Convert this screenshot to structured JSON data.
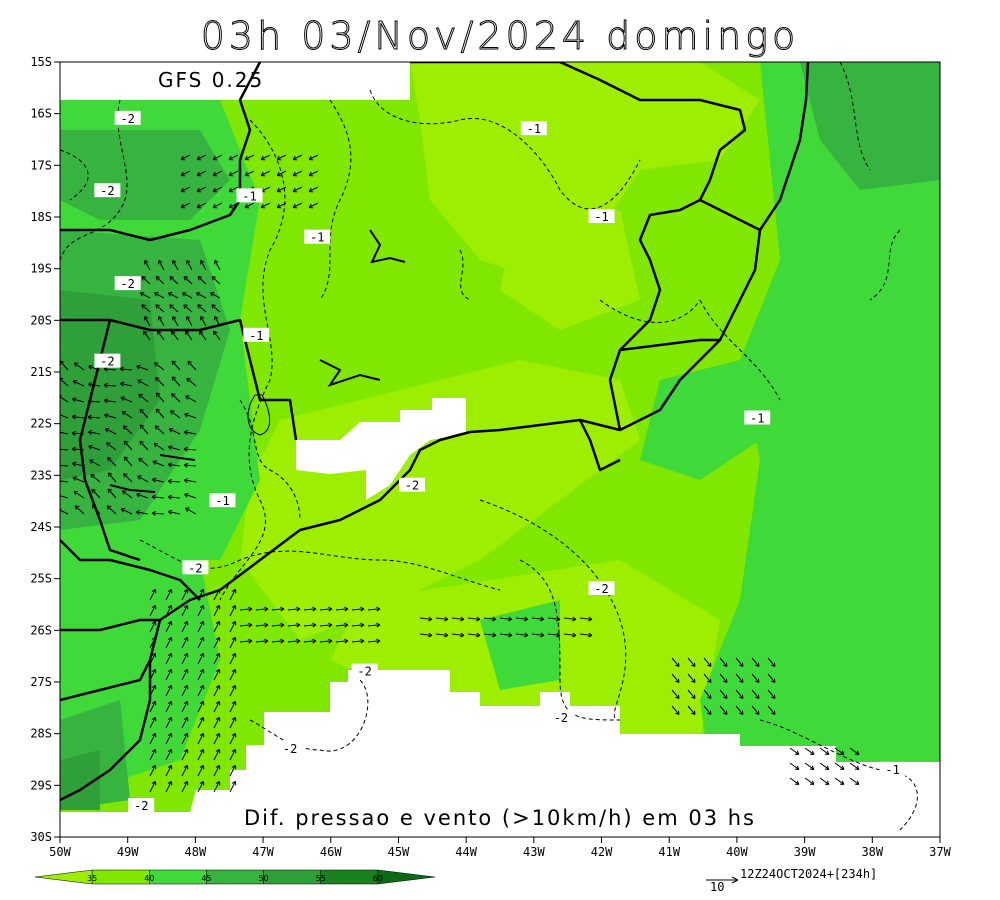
{
  "title": "03h 03/Nov/2024 domingo",
  "model": "GFS 0.25",
  "caption": "Dif. pressao e vento (>10km/h) em 03 hs",
  "run": "12Z24OCT2024+[234h]",
  "vector_ref": "10",
  "lat_labels": [
    "15S",
    "16S",
    "17S",
    "18S",
    "19S",
    "20S",
    "21S",
    "22S",
    "23S",
    "24S",
    "25S",
    "26S",
    "27S",
    "28S",
    "29S",
    "30S"
  ],
  "lon_labels": [
    "50W",
    "49W",
    "48W",
    "47W",
    "46W",
    "45W",
    "44W",
    "43W",
    "42W",
    "41W",
    "40W",
    "39W",
    "38W",
    "37W"
  ],
  "colorbar": {
    "ticks": [
      "35",
      "40",
      "45",
      "50",
      "55",
      "60"
    ],
    "colors": [
      "#9dee00",
      "#7fe700",
      "#3fd93a",
      "#37b33f",
      "#2f9f3a",
      "#19821f",
      "#0d6a17"
    ]
  },
  "contour_labels": [
    {
      "text": "-2",
      "lon": -49.0,
      "lat": -16.1
    },
    {
      "text": "-2",
      "lon": -49.3,
      "lat": -17.5
    },
    {
      "text": "-1",
      "lon": -47.2,
      "lat": -17.6
    },
    {
      "text": "-1",
      "lon": -46.2,
      "lat": -18.4
    },
    {
      "text": "-2",
      "lon": -49.0,
      "lat": -19.3
    },
    {
      "text": "-1",
      "lon": -47.1,
      "lat": -20.3
    },
    {
      "text": "-2",
      "lon": -49.3,
      "lat": -20.8
    },
    {
      "text": "-1",
      "lon": -47.6,
      "lat": -23.5
    },
    {
      "text": "-2",
      "lon": -44.8,
      "lat": -23.2
    },
    {
      "text": "-1",
      "lon": -43.0,
      "lat": -16.3
    },
    {
      "text": "-1",
      "lon": -42.0,
      "lat": -18.0
    },
    {
      "text": "-1",
      "lon": -39.7,
      "lat": -21.9
    },
    {
      "text": "-2",
      "lon": -48.0,
      "lat": -24.8
    },
    {
      "text": "-2",
      "lon": -42.0,
      "lat": -25.2
    },
    {
      "text": "-2",
      "lon": -45.5,
      "lat": -26.8
    },
    {
      "text": "-2",
      "lon": -46.6,
      "lat": -28.3
    },
    {
      "text": "-2",
      "lon": -42.6,
      "lat": -27.7
    },
    {
      "text": "-2",
      "lon": -48.8,
      "lat": -29.4
    },
    {
      "text": "-1",
      "lon": -37.7,
      "lat": -28.7
    }
  ],
  "colors": {
    "frame": "#000000",
    "masked": "#ffffff"
  }
}
